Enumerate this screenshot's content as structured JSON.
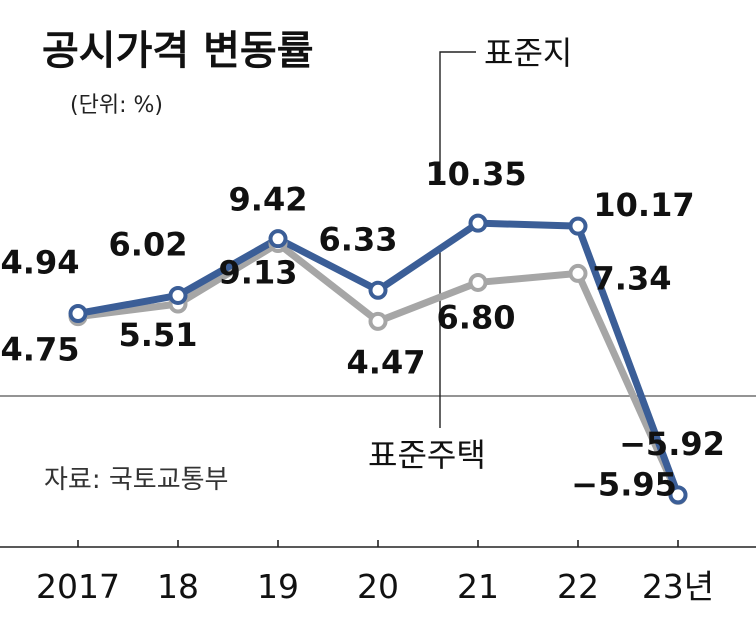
{
  "chart_data": {
    "type": "line",
    "title": "공시가격 변동률",
    "unit_label": "(단위: %)",
    "source": "자료: 국토교통부",
    "categories": [
      "2017",
      "18",
      "19",
      "20",
      "21",
      "22",
      "23년"
    ],
    "series": [
      {
        "name": "표준지",
        "color": "#3b5e97",
        "values": [
          4.94,
          6.02,
          9.42,
          6.33,
          10.35,
          10.17,
          -5.92
        ],
        "labels": [
          "4.94",
          "6.02",
          "9.42",
          "6.33",
          "10.35",
          "10.17",
          "−5.92"
        ]
      },
      {
        "name": "표준주택",
        "color": "#a6a6a6",
        "values": [
          4.75,
          5.51,
          9.13,
          4.47,
          6.8,
          7.34,
          -5.95
        ],
        "labels": [
          "4.75",
          "5.51",
          "9.13",
          "4.47",
          "6.80",
          "7.34",
          "−5.95"
        ]
      }
    ],
    "zero_line": true,
    "grid": false
  }
}
